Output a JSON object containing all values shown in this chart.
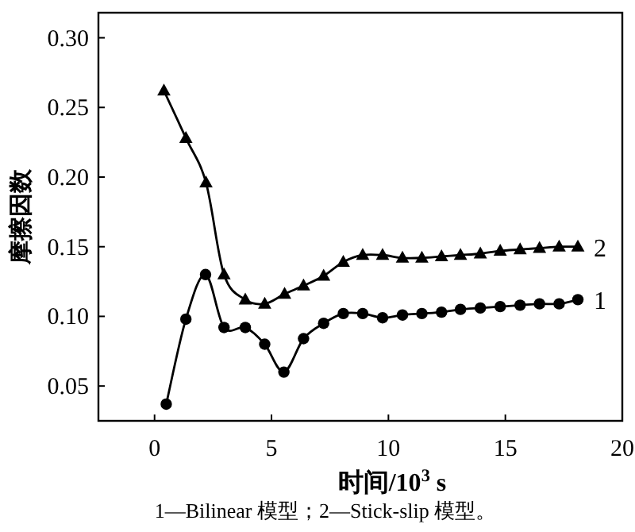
{
  "chart_data": {
    "type": "line",
    "xlabel": "时间/10$^{3}$ s",
    "ylabel": "摩擦因数",
    "annotations": [
      "1—Bilinear 模型；2—Stick-slip 模型。"
    ],
    "xlim": [
      -2.4,
      20
    ],
    "xticks": [
      0,
      5,
      10,
      15,
      20
    ],
    "ylim": [
      0.025,
      0.318
    ],
    "yticks": [
      {
        "value": 0.05,
        "label": "0.05"
      },
      {
        "value": 0.1,
        "label": "0.10"
      },
      {
        "value": 0.15,
        "label": "0.15"
      },
      {
        "value": 0.2,
        "label": "0.20"
      },
      {
        "value": 0.25,
        "label": "0.25"
      },
      {
        "value": 0.3,
        "label": "0.30"
      }
    ],
    "grid": false,
    "line_style": "solid",
    "series": [
      {
        "name": "1",
        "color": "#000000",
        "marker": "circle",
        "x": [
          0.5,
          1.34,
          2.18,
          2.97,
          3.88,
          4.71,
          5.53,
          6.37,
          7.23,
          8.07,
          8.9,
          9.75,
          10.6,
          11.43,
          12.27,
          13.08,
          13.93,
          14.78,
          15.63,
          16.46,
          17.3,
          18.1
        ],
        "values": [
          0.037,
          0.098,
          0.13,
          0.092,
          0.092,
          0.08,
          0.06,
          0.084,
          0.095,
          0.102,
          0.102,
          0.099,
          0.101,
          0.102,
          0.103,
          0.105,
          0.106,
          0.107,
          0.108,
          0.109,
          0.109,
          0.112
        ]
      },
      {
        "name": "2",
        "color": "#000000",
        "marker": "triangle",
        "x": [
          0.4,
          1.34,
          2.2,
          2.97,
          3.88,
          4.71,
          5.56,
          6.37,
          7.23,
          8.07,
          8.9,
          9.75,
          10.6,
          11.43,
          12.27,
          13.08,
          13.93,
          14.78,
          15.63,
          16.46,
          17.3,
          18.1
        ],
        "values": [
          0.262,
          0.228,
          0.196,
          0.13,
          0.112,
          0.109,
          0.116,
          0.122,
          0.129,
          0.139,
          0.144,
          0.144,
          0.142,
          0.142,
          0.143,
          0.144,
          0.145,
          0.147,
          0.148,
          0.149,
          0.15,
          0.15
        ]
      }
    ]
  }
}
